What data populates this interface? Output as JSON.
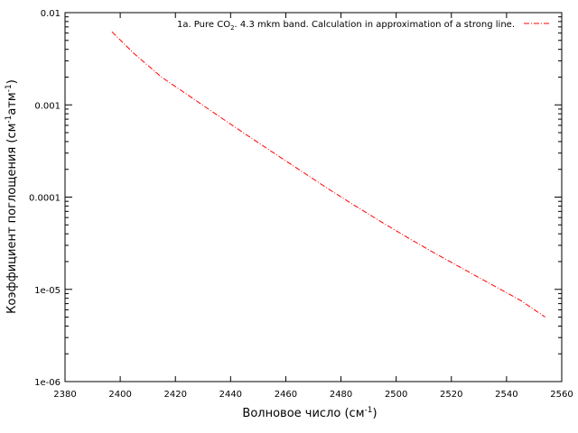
{
  "chart_data": {
    "type": "line",
    "title": "",
    "xlabel_prefix": "Волновое число (см",
    "xlabel_sup": "-1",
    "xlabel_suffix": ")",
    "ylabel_prefix": "Коэффициент поглощения (см",
    "ylabel_sup1": "-1",
    "ylabel_mid": "атм",
    "ylabel_sup2": "-1",
    "ylabel_suffix": ")",
    "xlim": [
      2380,
      2560
    ],
    "ylim": [
      1e-06,
      0.01
    ],
    "y_scale": "log",
    "grid": false,
    "legend_position": "top-right",
    "x_ticks": [
      "2380",
      "2400",
      "2420",
      "2440",
      "2460",
      "2480",
      "2500",
      "2520",
      "2540",
      "2560"
    ],
    "y_ticks": [
      "1e-06",
      "1e-05",
      "0.0001",
      "0.001",
      "0.01"
    ],
    "series": [
      {
        "name_prefix": "1a. Pure CO",
        "name_sub": "2",
        "name_suffix": ". 4.3 mkm band. Calculation in approximation of a strong line.",
        "color": "#ff0000",
        "dash": "dash-dot",
        "x": [
          2397,
          2405,
          2415,
          2425,
          2435,
          2445,
          2455,
          2465,
          2475,
          2485,
          2495,
          2505,
          2515,
          2525,
          2535,
          2545,
          2554
        ],
        "y": [
          0.0062,
          0.0036,
          0.002,
          0.00125,
          0.00078,
          0.00049,
          0.00031,
          0.000197,
          0.000125,
          8.1e-05,
          5.3e-05,
          3.52e-05,
          2.37e-05,
          1.62e-05,
          1.11e-05,
          7.6e-06,
          5e-06
        ]
      }
    ]
  }
}
